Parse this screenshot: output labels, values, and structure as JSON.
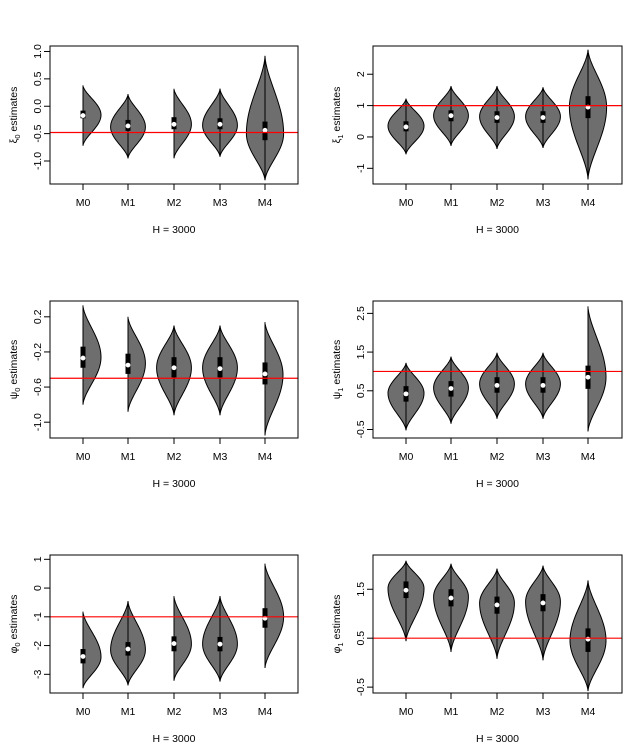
{
  "xlabel_common": "H = 3000",
  "colors": {
    "violin_fill": "#6e6e6e",
    "reference_line": "#ff0000",
    "box": "#000000",
    "median": "#ffffff"
  },
  "chart_data": [
    {
      "type": "violin",
      "ylabel_sym": "ξ",
      "ylabel_sub": "0",
      "ylabel_rest": " estimates",
      "xlabel": "H = 3000",
      "categories": [
        "M0",
        "M1",
        "M2",
        "M3",
        "M4"
      ],
      "yticks": [
        1.0,
        0.5,
        0.0,
        -0.5,
        -1.0
      ],
      "ytick_labels": [
        "1.0",
        "0.5",
        "0.0",
        "-0.5",
        "-1.0"
      ],
      "ylim": [
        -1.42,
        1.1
      ],
      "reference_line": -0.48,
      "violins": [
        {
          "min": -0.72,
          "q1": -0.22,
          "median": -0.17,
          "q3": -0.08,
          "max": 0.38,
          "peak": -0.16,
          "width": 0.6
        },
        {
          "min": -0.95,
          "q1": -0.45,
          "median": -0.36,
          "q3": -0.25,
          "max": 0.22,
          "peak": -0.38,
          "width": 0.58
        },
        {
          "min": -0.95,
          "q1": -0.42,
          "median": -0.33,
          "q3": -0.2,
          "max": 0.32,
          "peak": -0.33,
          "width": 0.58
        },
        {
          "min": -0.92,
          "q1": -0.42,
          "median": -0.33,
          "q3": -0.22,
          "max": 0.32,
          "peak": -0.35,
          "width": 0.58
        },
        {
          "min": -1.35,
          "q1": -0.62,
          "median": -0.44,
          "q3": -0.28,
          "max": 0.92,
          "peak": -0.5,
          "width": 0.62
        }
      ]
    },
    {
      "type": "violin",
      "ylabel_sym": "ξ",
      "ylabel_sub": "1",
      "ylabel_rest": " estimates",
      "xlabel": "H = 3000",
      "categories": [
        "M0",
        "M1",
        "M2",
        "M3",
        "M4"
      ],
      "yticks": [
        2,
        1,
        0,
        -1
      ],
      "ytick_labels": [
        "2",
        "1",
        "0",
        "-1"
      ],
      "ylim": [
        -1.5,
        2.9
      ],
      "reference_line": 1.0,
      "violins": [
        {
          "min": -0.55,
          "q1": 0.18,
          "median": 0.32,
          "q3": 0.5,
          "max": 1.22,
          "peak": 0.35,
          "width": 0.6
        },
        {
          "min": -0.28,
          "q1": 0.5,
          "median": 0.68,
          "q3": 0.85,
          "max": 1.62,
          "peak": 0.68,
          "width": 0.58
        },
        {
          "min": -0.38,
          "q1": 0.45,
          "median": 0.62,
          "q3": 0.82,
          "max": 1.62,
          "peak": 0.65,
          "width": 0.58
        },
        {
          "min": -0.35,
          "q1": 0.45,
          "median": 0.62,
          "q3": 0.82,
          "max": 1.58,
          "peak": 0.65,
          "width": 0.58
        },
        {
          "min": -1.35,
          "q1": 0.6,
          "median": 0.95,
          "q3": 1.3,
          "max": 2.78,
          "peak": 0.95,
          "width": 0.62
        }
      ]
    },
    {
      "type": "violin",
      "ylabel_sym": "ψ",
      "ylabel_sub": "0",
      "ylabel_rest": " estimates",
      "xlabel": "H = 3000",
      "categories": [
        "M0",
        "M1",
        "M2",
        "M3",
        "M4"
      ],
      "yticks": [
        0.2,
        -0.2,
        -0.6,
        -1.0
      ],
      "ytick_labels": [
        "0.2",
        "-0.2",
        "-0.6",
        "-1.0"
      ],
      "ylim": [
        -1.18,
        0.38
      ],
      "reference_line": -0.5,
      "violins": [
        {
          "min": -0.8,
          "q1": -0.38,
          "median": -0.27,
          "q3": -0.14,
          "max": 0.33,
          "peak": -0.26,
          "width": 0.6
        },
        {
          "min": -0.88,
          "q1": -0.45,
          "median": -0.35,
          "q3": -0.22,
          "max": 0.2,
          "peak": -0.33,
          "width": 0.58
        },
        {
          "min": -0.92,
          "q1": -0.49,
          "median": -0.38,
          "q3": -0.26,
          "max": 0.1,
          "peak": -0.38,
          "width": 0.58
        },
        {
          "min": -0.92,
          "q1": -0.49,
          "median": -0.39,
          "q3": -0.26,
          "max": 0.1,
          "peak": -0.38,
          "width": 0.58
        },
        {
          "min": -1.15,
          "q1": -0.57,
          "median": -0.45,
          "q3": -0.32,
          "max": 0.14,
          "peak": -0.46,
          "width": 0.6
        }
      ]
    },
    {
      "type": "violin",
      "ylabel_sym": "ψ",
      "ylabel_sub": "1",
      "ylabel_rest": " estimates",
      "xlabel": "H = 3000",
      "categories": [
        "M0",
        "M1",
        "M2",
        "M3",
        "M4"
      ],
      "yticks": [
        2.5,
        1.5,
        0.5,
        -0.5
      ],
      "ytick_labels": [
        "2.5",
        "1.5",
        "0.5",
        "-0.5"
      ],
      "ylim": [
        -0.72,
        2.82
      ],
      "reference_line": 1.0,
      "violins": [
        {
          "min": -0.52,
          "q1": 0.22,
          "median": 0.42,
          "q3": 0.62,
          "max": 1.22,
          "peak": 0.44,
          "width": 0.6
        },
        {
          "min": -0.35,
          "q1": 0.35,
          "median": 0.56,
          "q3": 0.75,
          "max": 1.38,
          "peak": 0.58,
          "width": 0.58
        },
        {
          "min": -0.22,
          "q1": 0.45,
          "median": 0.64,
          "q3": 0.85,
          "max": 1.48,
          "peak": 0.68,
          "width": 0.58
        },
        {
          "min": -0.22,
          "q1": 0.45,
          "median": 0.64,
          "q3": 0.85,
          "max": 1.48,
          "peak": 0.68,
          "width": 0.58
        },
        {
          "min": -0.55,
          "q1": 0.55,
          "median": 0.85,
          "q3": 1.15,
          "max": 2.68,
          "peak": 0.85,
          "width": 0.6
        }
      ]
    },
    {
      "type": "violin",
      "ylabel_sym": "φ",
      "ylabel_sub": "0",
      "ylabel_rest": " estimates",
      "xlabel": "H = 3000",
      "categories": [
        "M0",
        "M1",
        "M2",
        "M3",
        "M4"
      ],
      "yticks": [
        1,
        0,
        -1,
        -2,
        -3
      ],
      "ytick_labels": [
        "1",
        "0",
        "-1",
        "-2",
        "-3"
      ],
      "ylim": [
        -3.65,
        1.15
      ],
      "reference_line": -1.0,
      "violins": [
        {
          "min": -3.48,
          "q1": -2.62,
          "median": -2.38,
          "q3": -2.12,
          "max": -0.82,
          "peak": -2.4,
          "width": 0.6
        },
        {
          "min": -3.38,
          "q1": -2.35,
          "median": -2.12,
          "q3": -1.88,
          "max": -0.45,
          "peak": -2.15,
          "width": 0.58
        },
        {
          "min": -3.22,
          "q1": -2.2,
          "median": -1.93,
          "q3": -1.68,
          "max": -0.28,
          "peak": -1.95,
          "width": 0.58
        },
        {
          "min": -3.25,
          "q1": -2.2,
          "median": -1.95,
          "q3": -1.7,
          "max": -0.28,
          "peak": -1.95,
          "width": 0.58
        },
        {
          "min": -2.78,
          "q1": -1.38,
          "median": -1.05,
          "q3": -0.7,
          "max": 0.85,
          "peak": -1.0,
          "width": 0.62
        }
      ]
    },
    {
      "type": "violin",
      "ylabel_sym": "φ",
      "ylabel_sub": "1",
      "ylabel_rest": " estimates",
      "xlabel": "H = 3000",
      "categories": [
        "M0",
        "M1",
        "M2",
        "M3",
        "M4"
      ],
      "yticks": [
        1.5,
        0.5,
        -0.5
      ],
      "ytick_labels": [
        "1.5",
        "0.5",
        "-0.5"
      ],
      "ylim": [
        -0.62,
        2.2
      ],
      "reference_line": 0.5,
      "violins": [
        {
          "min": 0.44,
          "q1": 1.32,
          "median": 1.48,
          "q3": 1.66,
          "max": 2.08,
          "peak": 1.52,
          "width": 0.6
        },
        {
          "min": 0.22,
          "q1": 1.15,
          "median": 1.32,
          "q3": 1.5,
          "max": 2.02,
          "peak": 1.35,
          "width": 0.58
        },
        {
          "min": 0.08,
          "q1": 1.0,
          "median": 1.18,
          "q3": 1.35,
          "max": 1.92,
          "peak": 1.22,
          "width": 0.58
        },
        {
          "min": 0.05,
          "q1": 1.05,
          "median": 1.22,
          "q3": 1.4,
          "max": 1.98,
          "peak": 1.25,
          "width": 0.58
        },
        {
          "min": -0.58,
          "q1": 0.22,
          "median": 0.48,
          "q3": 0.7,
          "max": 1.68,
          "peak": 0.45,
          "width": 0.6
        }
      ]
    }
  ]
}
